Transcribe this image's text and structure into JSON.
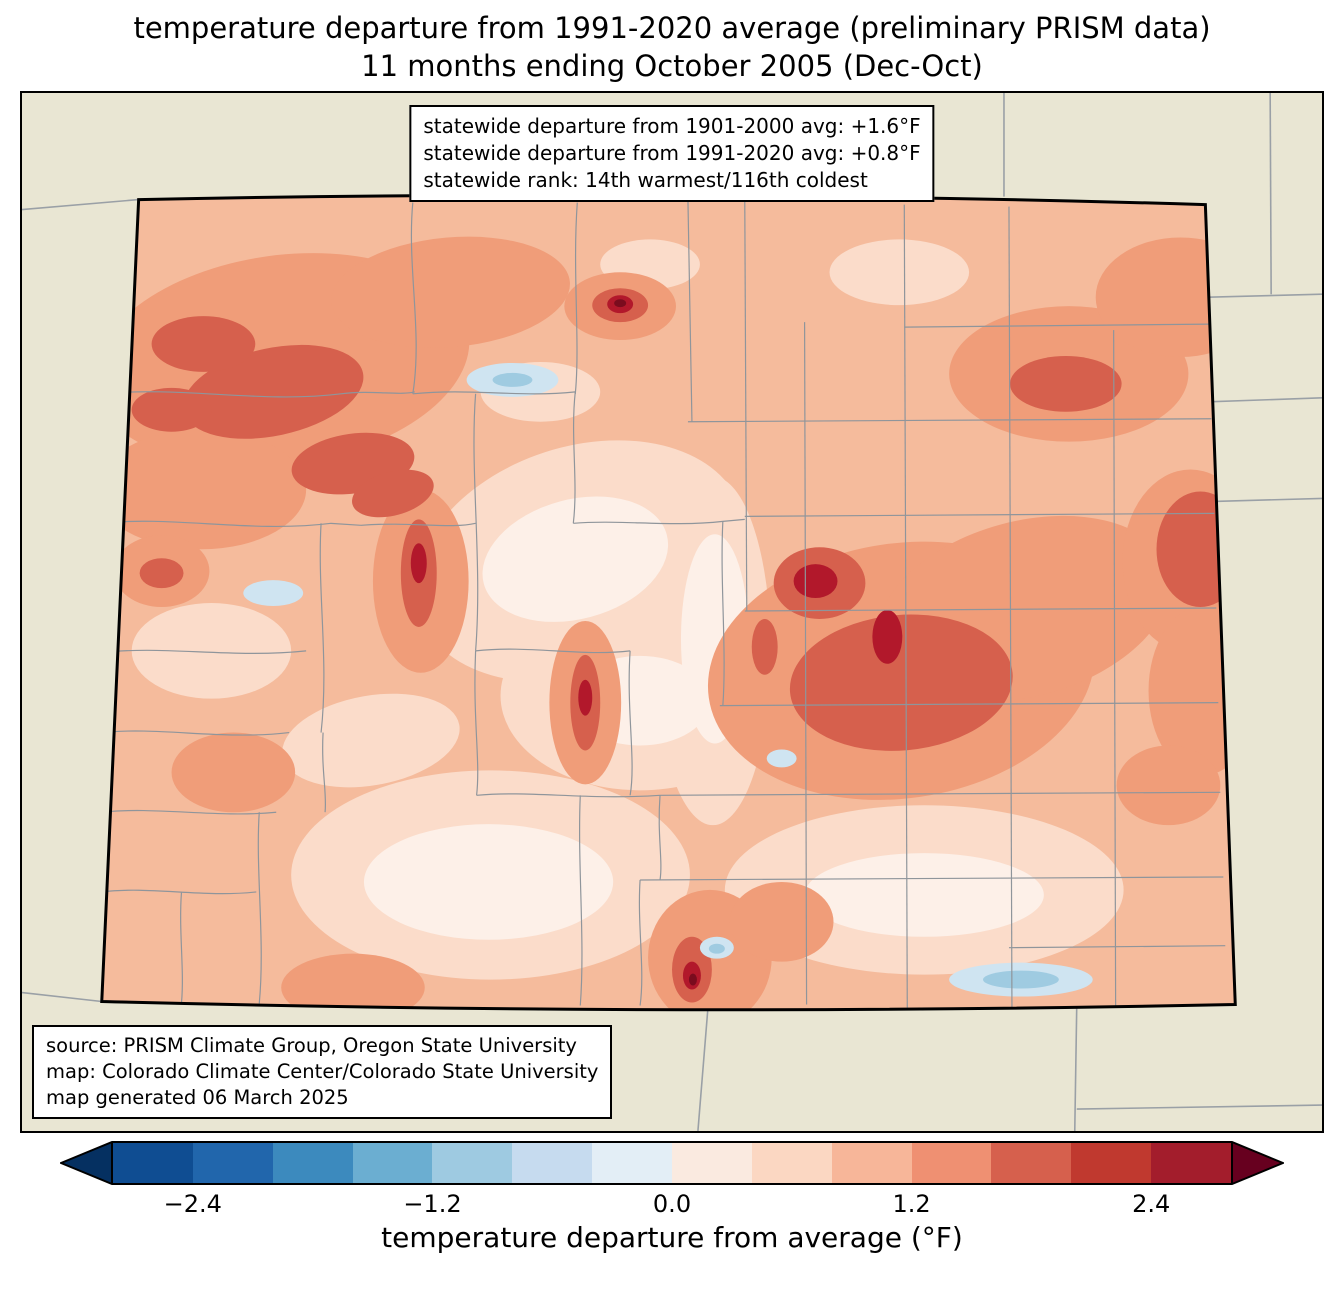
{
  "title": {
    "line1": "temperature departure from 1991-2020 average (preliminary PRISM data)",
    "line2": "11 months ending October 2005 (Dec-Oct)"
  },
  "stats_box": {
    "line1": "statewide departure from 1901-2000 avg: +1.6°F",
    "line2": "statewide departure from 1991-2020 avg: +0.8°F",
    "line3": "statewide rank: 14th warmest/116th coldest"
  },
  "source_box": {
    "line1": "source: PRISM Climate Group, Oregon State University",
    "line2": "map: Colorado Climate Center/Colorado State University",
    "line3": "map generated 06 March 2025"
  },
  "colorbar": {
    "label": "temperature departure from average (°F)",
    "ticks": [
      "−2.4",
      "−1.2",
      "0.0",
      "1.2",
      "2.4"
    ],
    "segments": [
      "#0f4d92",
      "#2166ac",
      "#3c8abe",
      "#6baed1",
      "#9ecae1",
      "#c6dbef",
      "#e3eef6",
      "#faeae0",
      "#fbd7c2",
      "#f7b699",
      "#ef9072",
      "#d6604d",
      "#c0392f",
      "#a31d2c"
    ],
    "arrow_left": "#053061",
    "arrow_right": "#67001f"
  },
  "map": {
    "region": "Colorado",
    "description": "temperature departure shading with county boundaries"
  },
  "palette": {
    "frame_bg": "#e9e6d3",
    "state_line": "#9aa0a6",
    "county_line": "#8f959b",
    "c0": "#fdf0e8",
    "c1": "#fbdcca",
    "c2": "#f5bb9c",
    "c3": "#f09d79",
    "c4": "#d6604d",
    "c5": "#b2182b",
    "c6": "#7a0c1e",
    "b1": "#cfe4f1",
    "b2": "#9fcbe1"
  }
}
